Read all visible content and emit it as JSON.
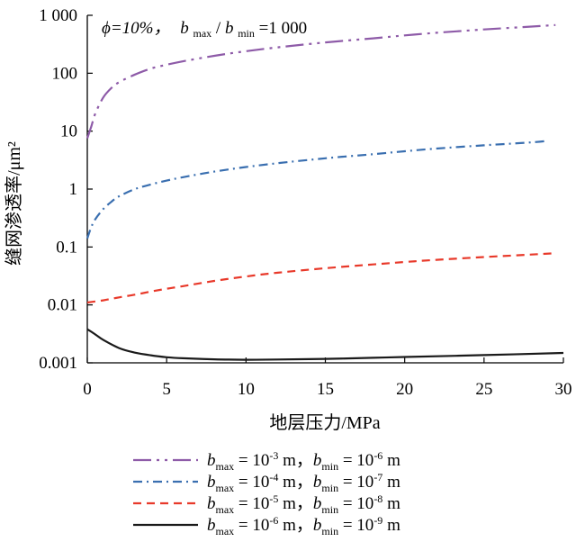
{
  "chart_data": {
    "type": "line",
    "title": "",
    "xlabel": "地层压力/MPa",
    "ylabel": "缝网渗透率/μm²",
    "xlim": [
      0,
      30
    ],
    "ylim": [
      0.001,
      1000
    ],
    "yscale": "log",
    "xticks": [
      0,
      5,
      10,
      15,
      20,
      25,
      30
    ],
    "xtick_labels": [
      "0",
      "5",
      "10",
      "15",
      "20",
      "25",
      "30"
    ],
    "yticks": [
      0.001,
      0.01,
      0.1,
      1,
      10,
      100,
      1000
    ],
    "ytick_labels": [
      "0.001",
      "0.01",
      "0.1",
      "1",
      "10",
      "100",
      "1 000"
    ],
    "grid": false,
    "legend_position": "bottom",
    "annotation": {
      "phi": "ϕ=10%，",
      "b": "b",
      "max": "max",
      "slash": "/",
      "min": "min",
      "eq": "=1 000"
    },
    "series": [
      {
        "name": "bmax = 10-3 m，bmin = 10-6 m",
        "color": "#8e5ba8",
        "dash": "20 6 3 6 3 6",
        "legend": {
          "b1": "b",
          "s1": "max",
          "eq1": " = 10",
          "p1": "-3",
          "u1": " m，",
          "b2": "b",
          "s2": "min",
          "eq2": " = 10",
          "p2": "-6",
          "u2": " m"
        },
        "x": [
          0,
          0.25,
          0.5,
          1,
          1.5,
          2,
          3,
          4,
          5,
          6,
          8,
          10,
          12,
          15,
          18,
          20,
          22,
          25,
          28,
          29.5
        ],
        "y": [
          7.5,
          12,
          20,
          38,
          55,
          70,
          95,
          120,
          140,
          160,
          200,
          240,
          280,
          340,
          400,
          450,
          500,
          570,
          640,
          680
        ]
      },
      {
        "name": "bmax = 10-4 m，bmin = 10-7 m",
        "color": "#3a6fb0",
        "dash": "10 5 2 5",
        "legend": {
          "b1": "b",
          "s1": "max",
          "eq1": " = 10",
          "p1": "-4",
          "u1": " m，",
          "b2": "b",
          "s2": "min",
          "eq2": " = 10",
          "p2": "-7",
          "u2": " m"
        },
        "x": [
          0,
          0.25,
          0.5,
          1,
          1.5,
          2,
          3,
          4,
          5,
          6,
          8,
          10,
          12,
          15,
          18,
          20,
          22,
          25,
          28,
          29
        ],
        "y": [
          0.14,
          0.22,
          0.3,
          0.45,
          0.6,
          0.75,
          1.0,
          1.2,
          1.4,
          1.6,
          2.0,
          2.4,
          2.8,
          3.4,
          4.0,
          4.5,
          5.0,
          5.7,
          6.4,
          6.8
        ]
      },
      {
        "name": "bmax = 10-5 m，bmin = 10-8 m",
        "color": "#e8392a",
        "dash": "9 6",
        "legend": {
          "b1": "b",
          "s1": "max",
          "eq1": " = 10",
          "p1": "-5",
          "u1": " m，",
          "b2": "b",
          "s2": "min",
          "eq2": " = 10",
          "p2": "-8",
          "u2": " m"
        },
        "x": [
          0,
          1,
          2,
          3,
          4,
          5,
          6,
          8,
          10,
          12,
          15,
          18,
          20,
          22,
          25,
          28,
          29.5
        ],
        "y": [
          0.011,
          0.012,
          0.0135,
          0.015,
          0.017,
          0.019,
          0.021,
          0.026,
          0.031,
          0.036,
          0.043,
          0.05,
          0.055,
          0.06,
          0.067,
          0.074,
          0.078
        ]
      },
      {
        "name": "bmax = 10-6 m，bmin = 10-9 m",
        "color": "#1a1a1a",
        "dash": "",
        "legend": {
          "b1": "b",
          "s1": "max",
          "eq1": " = 10",
          "p1": "-6",
          "u1": " m，",
          "b2": "b",
          "s2": "min",
          "eq2": " = 10",
          "p2": "-9",
          "u2": " m"
        },
        "x": [
          0,
          0.5,
          1,
          2,
          3,
          4,
          5,
          6,
          8,
          10,
          12,
          15,
          18,
          20,
          25,
          30
        ],
        "y": [
          0.0038,
          0.0031,
          0.0025,
          0.0018,
          0.0015,
          0.00135,
          0.00125,
          0.0012,
          0.00115,
          0.00113,
          0.00114,
          0.00117,
          0.00122,
          0.00126,
          0.00136,
          0.00148
        ]
      }
    ]
  }
}
